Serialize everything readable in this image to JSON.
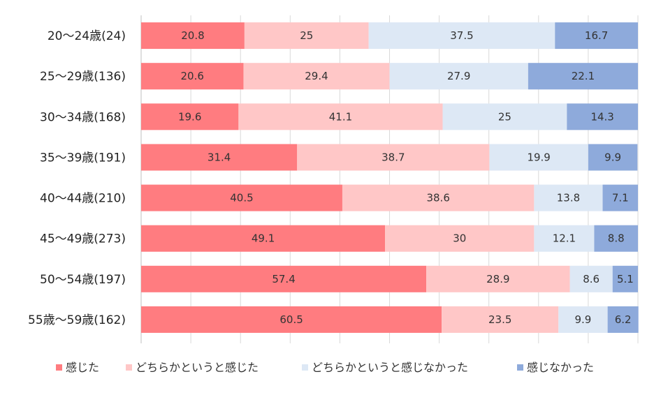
{
  "chart_data": {
    "type": "bar",
    "orientation": "horizontal",
    "stacked": true,
    "percent_stacked": true,
    "categories": [
      "20〜24歳(24)",
      "25〜29歳(136)",
      "30〜34歳(168)",
      "35〜39歳(191)",
      "40〜44歳(210)",
      "45〜49歳(273)",
      "50〜54歳(197)",
      "55歳〜59歳(162)"
    ],
    "series": [
      {
        "name": "感じた",
        "color": "#ff7c80",
        "values": [
          20.8,
          20.6,
          19.6,
          31.4,
          40.5,
          49.1,
          57.4,
          60.5
        ]
      },
      {
        "name": "どちらかというと感じた",
        "color": "#ffc7c7",
        "values": [
          25,
          29.4,
          41.1,
          38.7,
          38.6,
          30,
          28.9,
          23.5
        ]
      },
      {
        "name": "どちらかというと感じなかった",
        "color": "#dde8f5",
        "values": [
          37.5,
          27.9,
          25,
          19.9,
          13.8,
          12.1,
          8.6,
          9.9
        ]
      },
      {
        "name": "感じなかった",
        "color": "#8eaadb",
        "values": [
          16.7,
          22.1,
          14.3,
          9.9,
          7.1,
          8.8,
          5.1,
          6.2
        ]
      }
    ],
    "xlim": [
      0,
      100
    ],
    "grid": true,
    "legend_position": "bottom"
  }
}
